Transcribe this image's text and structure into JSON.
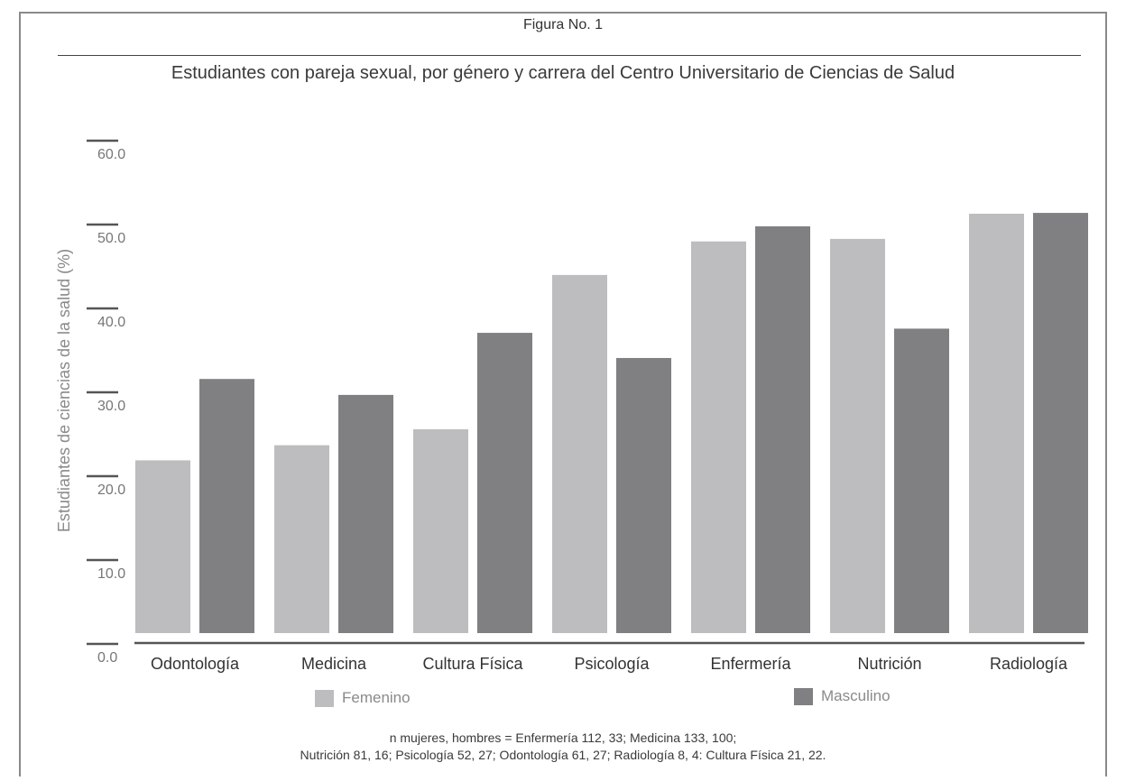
{
  "figure_label": "Figura No. 1",
  "chart_data": {
    "type": "bar",
    "title": "Estudiantes con pareja sexual, por género y carrera del Centro Universitario de Ciencias de Salud",
    "xlabel": "",
    "ylabel": "Estudiantes de ciencias de la salud (%)",
    "ylim": [
      0,
      60
    ],
    "yticks": [
      "0.0",
      "10.0",
      "20.0",
      "30.0",
      "40.0",
      "50.0",
      "60.0"
    ],
    "categories": [
      "Odontología",
      "Medicina",
      "Cultura Física",
      "Psicología",
      "Enfermería",
      "Nutrición",
      "Radiología"
    ],
    "series": [
      {
        "name": "Femenino",
        "color": "#bdbdbf",
        "values": [
          20.6,
          22.4,
          24.3,
          42.7,
          46.7,
          47.0,
          50.0
        ]
      },
      {
        "name": "Masculino",
        "color": "#808083",
        "values": [
          30.3,
          28.4,
          35.8,
          32.8,
          48.5,
          36.3,
          50.1
        ]
      }
    ],
    "legend_position": "bottom",
    "grid": false
  },
  "footnote": {
    "line1": "n mujeres, hombres = Enfermería 112, 33; Medicina 133, 100;",
    "line2": "Nutrición 81, 16; Psicología 52, 27; Odontología 61, 27; Radiología 8, 4: Cultura Física 21, 22."
  }
}
